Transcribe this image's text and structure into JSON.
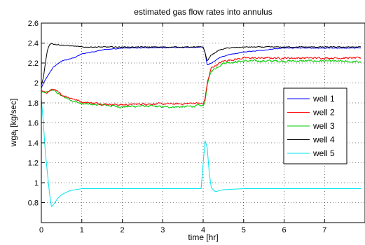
{
  "chart_data": {
    "type": "line",
    "title": "estimated gas flow rates into annulus",
    "xlabel": "time [hr]",
    "ylabel_main": "wga",
    "ylabel_sub": "i",
    "ylabel_unit": " [kg/sec]",
    "xlim": [
      0,
      8
    ],
    "ylim": [
      0.6,
      2.6
    ],
    "xticks": [
      0,
      1,
      2,
      3,
      4,
      5,
      6,
      7
    ],
    "yticks": [
      0.8,
      1,
      1.2,
      1.4,
      1.6,
      1.8,
      2,
      2.2,
      2.4,
      2.6
    ],
    "grid": "dotted",
    "legend_position": "center-right",
    "series": [
      {
        "name": "well 1",
        "color": "#0000ff",
        "x": [
          0,
          0.05,
          0.2,
          0.3,
          0.5,
          0.8,
          1.0,
          1.5,
          2.0,
          3.0,
          3.5,
          4.0,
          4.05,
          4.1,
          4.2,
          4.4,
          4.6,
          5.0,
          5.5,
          6.0,
          7.0,
          7.9
        ],
        "y": [
          1.95,
          2.0,
          2.1,
          2.16,
          2.22,
          2.25,
          2.29,
          2.33,
          2.35,
          2.355,
          2.355,
          2.36,
          2.3,
          2.18,
          2.2,
          2.25,
          2.28,
          2.31,
          2.33,
          2.35,
          2.35,
          2.35
        ],
        "noise": 0.004
      },
      {
        "name": "well 2",
        "color": "#ff0000",
        "x": [
          0,
          0.1,
          0.2,
          0.3,
          0.5,
          0.8,
          1.0,
          1.5,
          2.0,
          2.5,
          3.0,
          3.5,
          3.8,
          4.0,
          4.05,
          4.1,
          4.2,
          4.5,
          5.0,
          5.5,
          6.0,
          7.0,
          7.9
        ],
        "y": [
          1.92,
          1.9,
          1.92,
          1.94,
          1.88,
          1.84,
          1.81,
          1.79,
          1.78,
          1.79,
          1.79,
          1.79,
          1.8,
          1.79,
          1.85,
          2.0,
          2.15,
          2.22,
          2.25,
          2.25,
          2.25,
          2.25,
          2.25
        ],
        "noise": 0.01
      },
      {
        "name": "well 3",
        "color": "#00cc00",
        "x": [
          0,
          0.1,
          0.2,
          0.3,
          0.5,
          0.8,
          1.0,
          1.5,
          2.0,
          2.5,
          3.0,
          3.5,
          3.8,
          4.0,
          4.05,
          4.1,
          4.2,
          4.5,
          5.0,
          5.5,
          6.0,
          7.0,
          7.9
        ],
        "y": [
          1.91,
          1.9,
          1.92,
          1.93,
          1.87,
          1.82,
          1.79,
          1.78,
          1.76,
          1.77,
          1.76,
          1.76,
          1.77,
          1.77,
          1.82,
          1.98,
          2.12,
          2.2,
          2.22,
          2.22,
          2.22,
          2.22,
          2.21
        ],
        "noise": 0.012
      },
      {
        "name": "well 4",
        "color": "#000000",
        "x": [
          0,
          0.05,
          0.1,
          0.15,
          0.2,
          0.25,
          0.3,
          0.5,
          0.8,
          1.0,
          2.0,
          3.0,
          4.0,
          4.05,
          4.1,
          4.2,
          4.4,
          4.6,
          5.0,
          6.0,
          7.0,
          7.9
        ],
        "y": [
          1.98,
          2.05,
          2.2,
          2.33,
          2.38,
          2.4,
          2.39,
          2.38,
          2.37,
          2.36,
          2.36,
          2.36,
          2.36,
          2.3,
          2.22,
          2.28,
          2.33,
          2.35,
          2.36,
          2.36,
          2.36,
          2.36
        ],
        "noise": 0.005
      },
      {
        "name": "well 5",
        "color": "#00e5ee",
        "x": [
          0,
          0.05,
          0.1,
          0.2,
          0.25,
          0.3,
          0.4,
          0.5,
          0.7,
          1.0,
          1.5,
          2.0,
          3.0,
          3.95,
          4.0,
          4.05,
          4.1,
          4.15,
          4.2,
          4.3,
          4.5,
          5.0,
          6.0,
          7.0,
          7.9
        ],
        "y": [
          1.84,
          1.6,
          1.3,
          0.9,
          0.76,
          0.78,
          0.84,
          0.88,
          0.92,
          0.94,
          0.94,
          0.94,
          0.94,
          0.94,
          1.2,
          1.42,
          1.35,
          1.1,
          0.95,
          0.91,
          0.93,
          0.94,
          0.94,
          0.94,
          0.94
        ],
        "noise": 0
      }
    ]
  }
}
